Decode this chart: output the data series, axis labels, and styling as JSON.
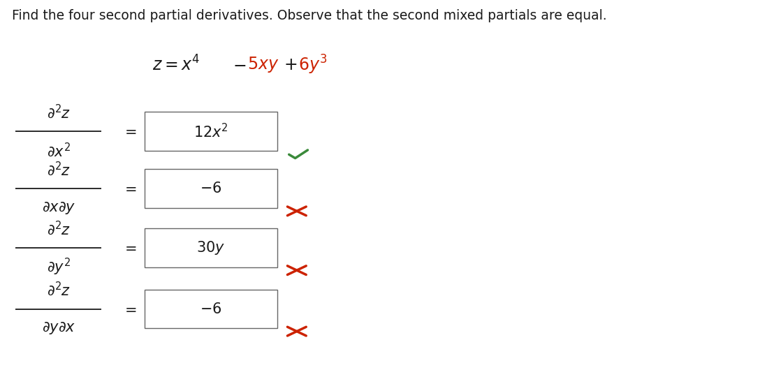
{
  "title": "Find the four second partial derivatives. Observe that the second mixed partials are equal.",
  "title_fontsize": 13.5,
  "title_color": "#1a1a1a",
  "background_color": "#ffffff",
  "rows": [
    {
      "lhs_num": "$\\partial^2z$",
      "lhs_den": "$\\partial x^2$",
      "answer": "$12x^2$",
      "correct": true
    },
    {
      "lhs_num": "$\\partial^2z$",
      "lhs_den": "$\\partial x\\partial y$",
      "answer": "$-6$",
      "correct": false
    },
    {
      "lhs_num": "$\\partial^2z$",
      "lhs_den": "$\\partial y^2$",
      "answer": "$30y$",
      "correct": false
    },
    {
      "lhs_num": "$\\partial^2z$",
      "lhs_den": "$\\partial y\\partial x$",
      "answer": "$-6$",
      "correct": false
    }
  ],
  "check_color": "#3a8a3a",
  "cross_color": "#cc2200",
  "text_color": "#1a1a1a",
  "red_color": "#cc2200"
}
